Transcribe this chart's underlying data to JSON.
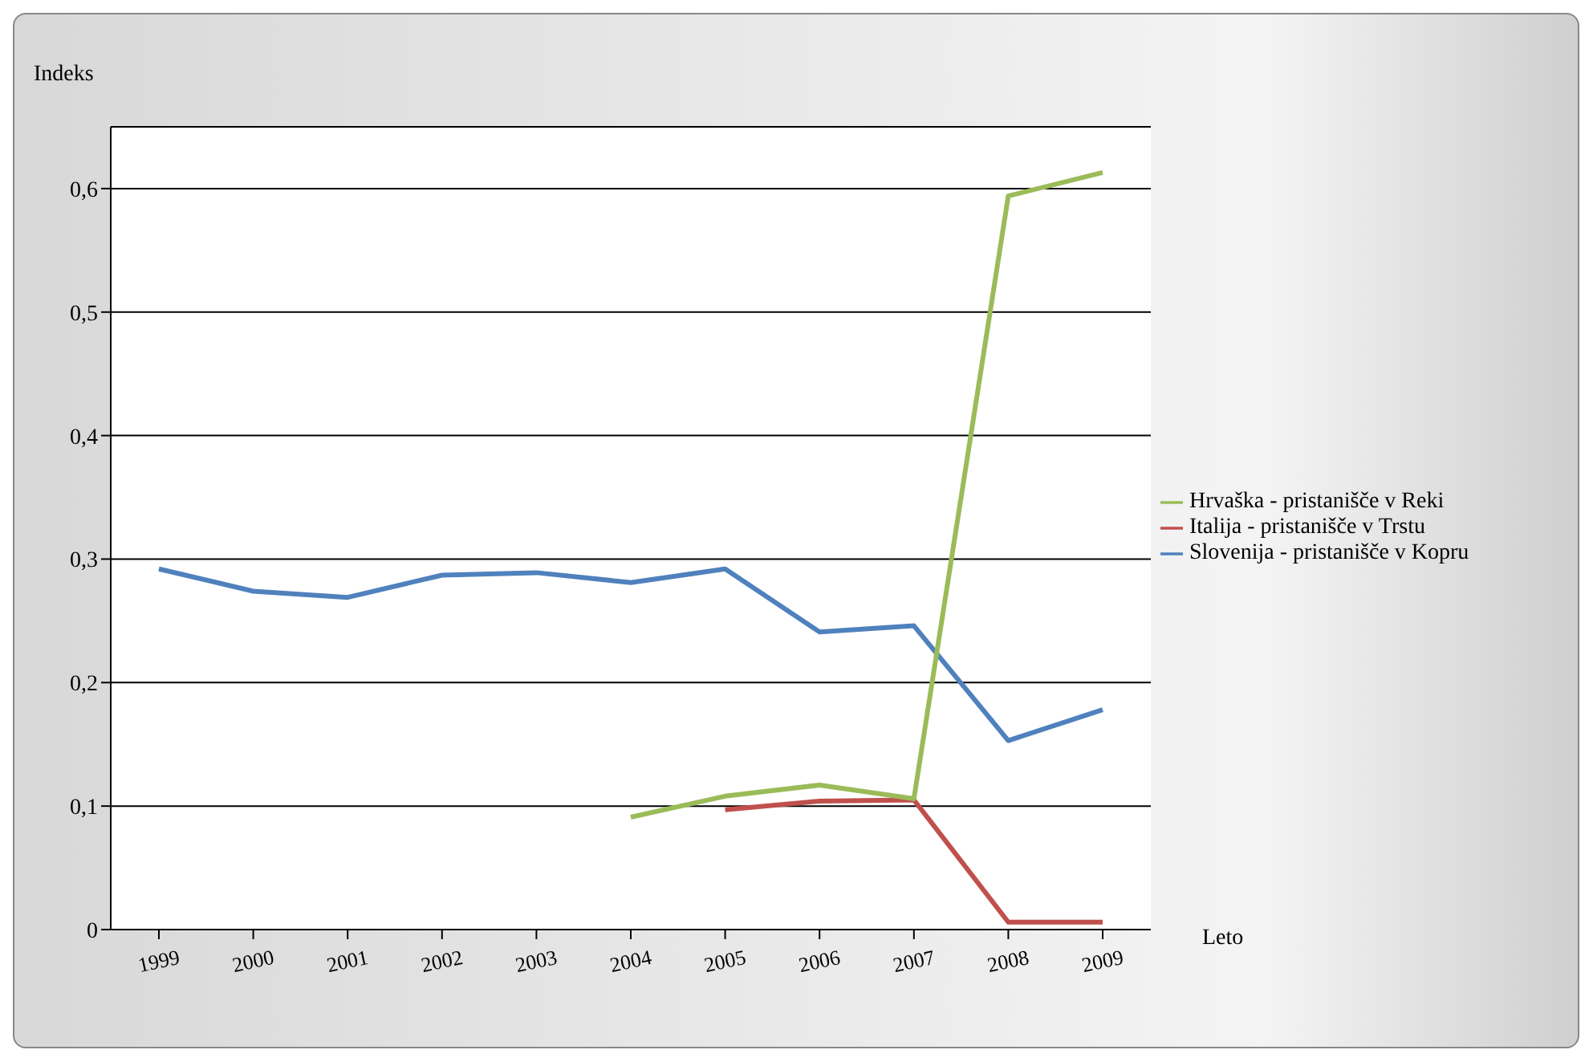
{
  "chart_data": {
    "type": "line",
    "ylabel": "Indeks",
    "xlabel": "Leto",
    "categories": [
      "1999",
      "2000",
      "2001",
      "2002",
      "2003",
      "2004",
      "2005",
      "2006",
      "2007",
      "2008",
      "2009"
    ],
    "series": [
      {
        "name": "Slovenija - pristanišče v Kopru",
        "color": "#4f81bd",
        "values": [
          0.292,
          0.274,
          0.269,
          0.287,
          0.289,
          0.281,
          0.292,
          0.241,
          0.246,
          0.153,
          0.178
        ]
      },
      {
        "name": "Italija - pristanišče v Trstu",
        "color": "#c0504d",
        "values": [
          null,
          null,
          null,
          null,
          null,
          null,
          0.097,
          0.104,
          0.105,
          0.006,
          0.006
        ]
      },
      {
        "name": "Hrvaška - pristanišče v Reki",
        "color": "#9bbb59",
        "values": [
          null,
          null,
          null,
          null,
          null,
          0.091,
          0.108,
          0.117,
          0.106,
          0.594,
          0.613
        ]
      }
    ],
    "ylim": [
      0,
      0.65
    ],
    "yticks": [
      {
        "value": 0,
        "label": "0"
      },
      {
        "value": 0.1,
        "label": "0,1"
      },
      {
        "value": 0.2,
        "label": "0,2"
      },
      {
        "value": 0.3,
        "label": "0,3"
      },
      {
        "value": 0.4,
        "label": "0,4"
      },
      {
        "value": 0.5,
        "label": "0,5"
      },
      {
        "value": 0.6,
        "label": "0,6"
      }
    ],
    "grid": "y",
    "legend": "right",
    "marker": "none",
    "line_style": "solid"
  }
}
